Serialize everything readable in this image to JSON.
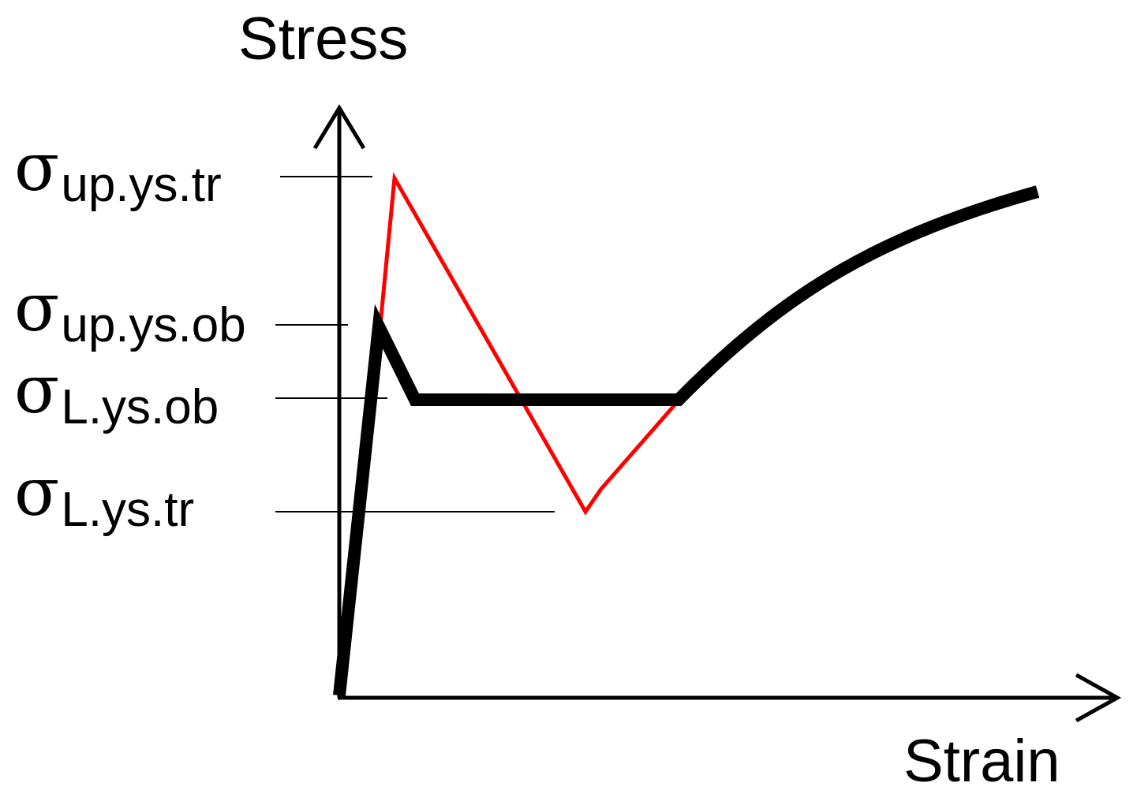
{
  "axes": {
    "y_label": "Stress",
    "x_label": "Strain"
  },
  "levels": [
    {
      "id": "up-tr",
      "symbol": "σ",
      "subscript": "up.ys.tr"
    },
    {
      "id": "up-ob",
      "symbol": "σ",
      "subscript": "up.ys.ob"
    },
    {
      "id": "l-ob",
      "symbol": "σ",
      "subscript": "L.ys.ob"
    },
    {
      "id": "l-tr",
      "symbol": "σ",
      "subscript": "L.ys.tr"
    }
  ],
  "colors": {
    "axis": "#000000",
    "observed_curve": "#000000",
    "true_curve": "#ff0000",
    "level_line": "#000000"
  }
}
